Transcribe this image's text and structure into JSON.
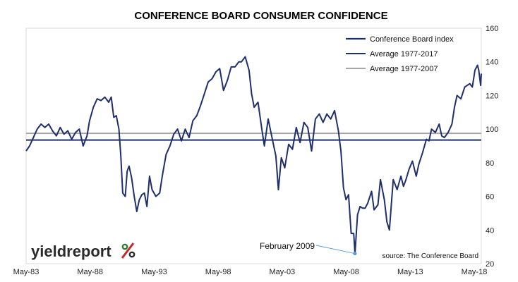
{
  "chart_data": {
    "type": "line",
    "title": "CONFERENCE BOARD CONSUMER CONFIDENCE",
    "xlabel": "",
    "ylabel": "",
    "x_tick_labels": [
      "May-83",
      "May-88",
      "May-93",
      "May-98",
      "May-03",
      "May-08",
      "May-13",
      "May-18"
    ],
    "x_range": [
      1983.33,
      2019.0
    ],
    "y_ticks": [
      20,
      40,
      60,
      80,
      100,
      120,
      140,
      160
    ],
    "ylim": [
      20,
      160
    ],
    "y_axis_side": "right",
    "grid": false,
    "legend_position": "top-right",
    "legend": [
      {
        "label": "Conference Board index",
        "color": "#1f2f6b"
      },
      {
        "label": "Average 1977-2017",
        "color": "#1f2f6b"
      },
      {
        "label": "Average 1977-2007",
        "color": "#a6a6a6"
      }
    ],
    "series": [
      {
        "name": "Conference Board index",
        "color": "#1f2f6b",
        "points": [
          [
            1983.33,
            87
          ],
          [
            1983.6,
            90
          ],
          [
            1983.9,
            95
          ],
          [
            1984.2,
            100
          ],
          [
            1984.5,
            103
          ],
          [
            1984.8,
            101
          ],
          [
            1985.1,
            103
          ],
          [
            1985.4,
            99
          ],
          [
            1985.7,
            96
          ],
          [
            1986.0,
            101
          ],
          [
            1986.3,
            97
          ],
          [
            1986.6,
            99
          ],
          [
            1986.9,
            94
          ],
          [
            1987.2,
            98
          ],
          [
            1987.5,
            100
          ],
          [
            1987.8,
            90
          ],
          [
            1988.1,
            96
          ],
          [
            1988.3,
            105
          ],
          [
            1988.6,
            113
          ],
          [
            1988.9,
            118
          ],
          [
            1989.2,
            117
          ],
          [
            1989.5,
            119
          ],
          [
            1989.8,
            116
          ],
          [
            1990.0,
            119
          ],
          [
            1990.2,
            107
          ],
          [
            1990.4,
            108
          ],
          [
            1990.6,
            100
          ],
          [
            1990.75,
            84
          ],
          [
            1990.9,
            62
          ],
          [
            1991.1,
            60
          ],
          [
            1991.25,
            75
          ],
          [
            1991.4,
            78
          ],
          [
            1991.6,
            71
          ],
          [
            1991.8,
            60
          ],
          [
            1992.0,
            51
          ],
          [
            1992.2,
            58
          ],
          [
            1992.4,
            61
          ],
          [
            1992.6,
            62
          ],
          [
            1992.8,
            54
          ],
          [
            1993.0,
            72
          ],
          [
            1993.2,
            64
          ],
          [
            1993.5,
            60
          ],
          [
            1993.8,
            62
          ],
          [
            1994.0,
            72
          ],
          [
            1994.3,
            85
          ],
          [
            1994.6,
            90
          ],
          [
            1994.9,
            97
          ],
          [
            1995.2,
            100
          ],
          [
            1995.5,
            93
          ],
          [
            1995.8,
            100
          ],
          [
            1996.1,
            95
          ],
          [
            1996.4,
            105
          ],
          [
            1996.7,
            108
          ],
          [
            1997.0,
            114
          ],
          [
            1997.3,
            121
          ],
          [
            1997.6,
            128
          ],
          [
            1997.9,
            130
          ],
          [
            1998.2,
            134
          ],
          [
            1998.5,
            136
          ],
          [
            1998.8,
            123
          ],
          [
            1999.1,
            129
          ],
          [
            1999.4,
            137
          ],
          [
            1999.7,
            137
          ],
          [
            2000.0,
            140
          ],
          [
            2000.2,
            140
          ],
          [
            2000.5,
            143
          ],
          [
            2000.8,
            135
          ],
          [
            2001.0,
            121
          ],
          [
            2001.2,
            113
          ],
          [
            2001.5,
            116
          ],
          [
            2001.8,
            100
          ],
          [
            2002.0,
            90
          ],
          [
            2002.3,
            106
          ],
          [
            2002.6,
            95
          ],
          [
            2002.9,
            84
          ],
          [
            2003.1,
            64
          ],
          [
            2003.33,
            83
          ],
          [
            2003.6,
            77
          ],
          [
            2003.9,
            91
          ],
          [
            2004.2,
            88
          ],
          [
            2004.5,
            101
          ],
          [
            2004.8,
            92
          ],
          [
            2005.1,
            104
          ],
          [
            2005.4,
            101
          ],
          [
            2005.7,
            87
          ],
          [
            2006.0,
            106
          ],
          [
            2006.3,
            109
          ],
          [
            2006.6,
            104
          ],
          [
            2006.9,
            109
          ],
          [
            2007.2,
            106
          ],
          [
            2007.5,
            111
          ],
          [
            2007.8,
            99
          ],
          [
            2008.0,
            87
          ],
          [
            2008.2,
            65
          ],
          [
            2008.4,
            58
          ],
          [
            2008.6,
            61
          ],
          [
            2008.8,
            38
          ],
          [
            2009.0,
            38
          ],
          [
            2009.1,
            26
          ],
          [
            2009.3,
            49
          ],
          [
            2009.5,
            54
          ],
          [
            2009.7,
            53
          ],
          [
            2009.9,
            53
          ],
          [
            2010.1,
            56
          ],
          [
            2010.4,
            63
          ],
          [
            2010.6,
            52
          ],
          [
            2010.9,
            55
          ],
          [
            2011.1,
            70
          ],
          [
            2011.4,
            58
          ],
          [
            2011.6,
            45
          ],
          [
            2011.8,
            40
          ],
          [
            2012.1,
            70
          ],
          [
            2012.4,
            64
          ],
          [
            2012.7,
            72
          ],
          [
            2012.9,
            66
          ],
          [
            2013.1,
            70
          ],
          [
            2013.33,
            76
          ],
          [
            2013.6,
            81
          ],
          [
            2013.9,
            72
          ],
          [
            2014.1,
            79
          ],
          [
            2014.4,
            86
          ],
          [
            2014.7,
            94
          ],
          [
            2014.9,
            93
          ],
          [
            2015.1,
            100
          ],
          [
            2015.4,
            98
          ],
          [
            2015.7,
            103
          ],
          [
            2015.9,
            96
          ],
          [
            2016.1,
            95
          ],
          [
            2016.4,
            98
          ],
          [
            2016.7,
            103
          ],
          [
            2016.9,
            113
          ],
          [
            2017.1,
            120
          ],
          [
            2017.4,
            118
          ],
          [
            2017.7,
            125
          ],
          [
            2017.9,
            126
          ],
          [
            2018.1,
            127
          ],
          [
            2018.3,
            125
          ],
          [
            2018.5,
            135
          ],
          [
            2018.7,
            138
          ],
          [
            2018.8,
            135
          ],
          [
            2018.95,
            126
          ],
          [
            2019.0,
            133
          ]
        ]
      },
      {
        "name": "Average 1977-2017",
        "color": "#1f2f6b",
        "constant": 93.5
      },
      {
        "name": "Average 1977-2007",
        "color": "#a6a6a6",
        "constant": 97.5
      }
    ],
    "annotations": [
      {
        "text": "February 2009",
        "x": 2009.1,
        "y": 26
      }
    ],
    "source": "source: The Conference Board"
  },
  "branding": {
    "logo_text": "yieldreport",
    "logo_symbol": "%",
    "colors": {
      "dark": "#2a2a2a",
      "green": "#2e7d32",
      "red": "#c62828"
    }
  }
}
